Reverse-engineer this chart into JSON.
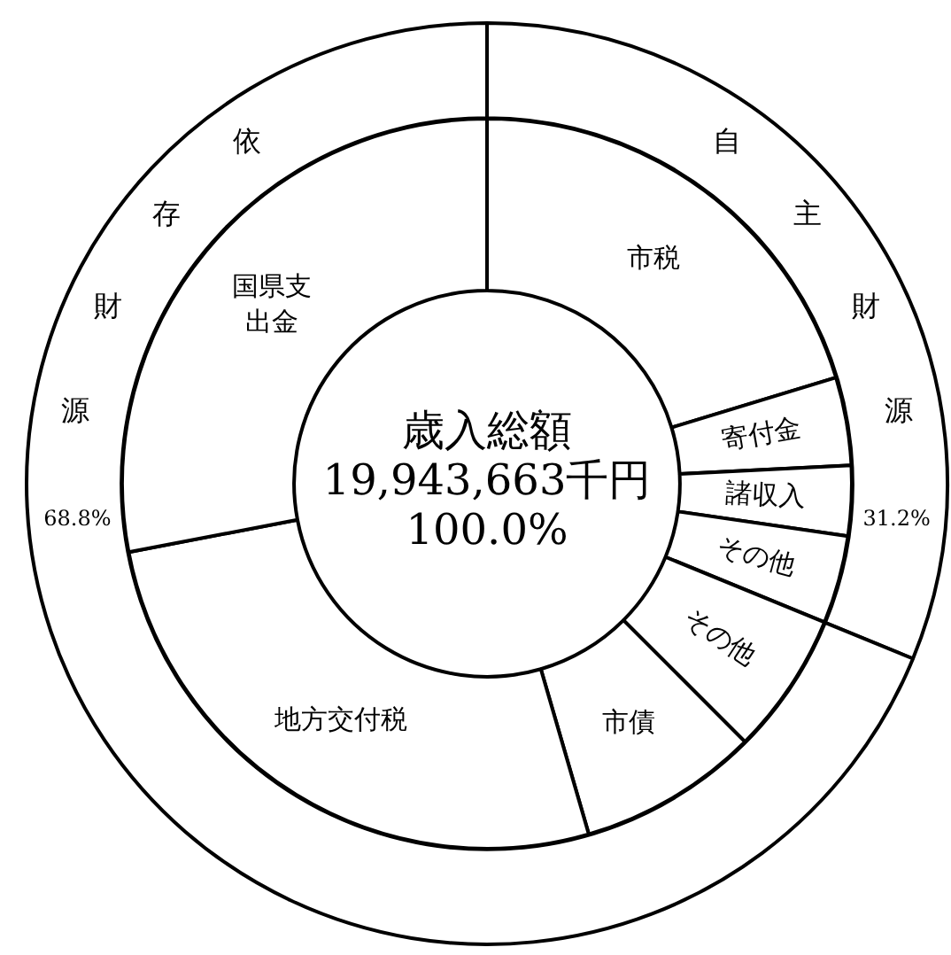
{
  "chart_data": [
    {
      "type": "donut",
      "legend": false,
      "categories": [
        "自主財源",
        "依存財源"
      ],
      "values": [
        31.2,
        68.8
      ],
      "value_labels": [
        "31.2%",
        "68.8%"
      ],
      "colors": [
        "#ffffff",
        "#ffffff"
      ]
    },
    {
      "type": "donut",
      "legend": false,
      "annotations": [
        "歳入総額",
        "19,943,663千円",
        "100.0%"
      ],
      "categories": [
        "市税",
        "寄付金",
        "諸収入",
        "その他",
        "その他",
        "市債",
        "地方交付税",
        "国県支出金"
      ],
      "values": [
        20.3,
        3.9,
        3.1,
        3.9,
        6.3,
        8.0,
        26.5,
        28.0
      ],
      "colors": [
        "#ffffff",
        "#ffffff",
        "#ffffff",
        "#ffffff",
        "#ffffff",
        "#ffffff",
        "#ffffff",
        "#ffffff"
      ]
    }
  ]
}
